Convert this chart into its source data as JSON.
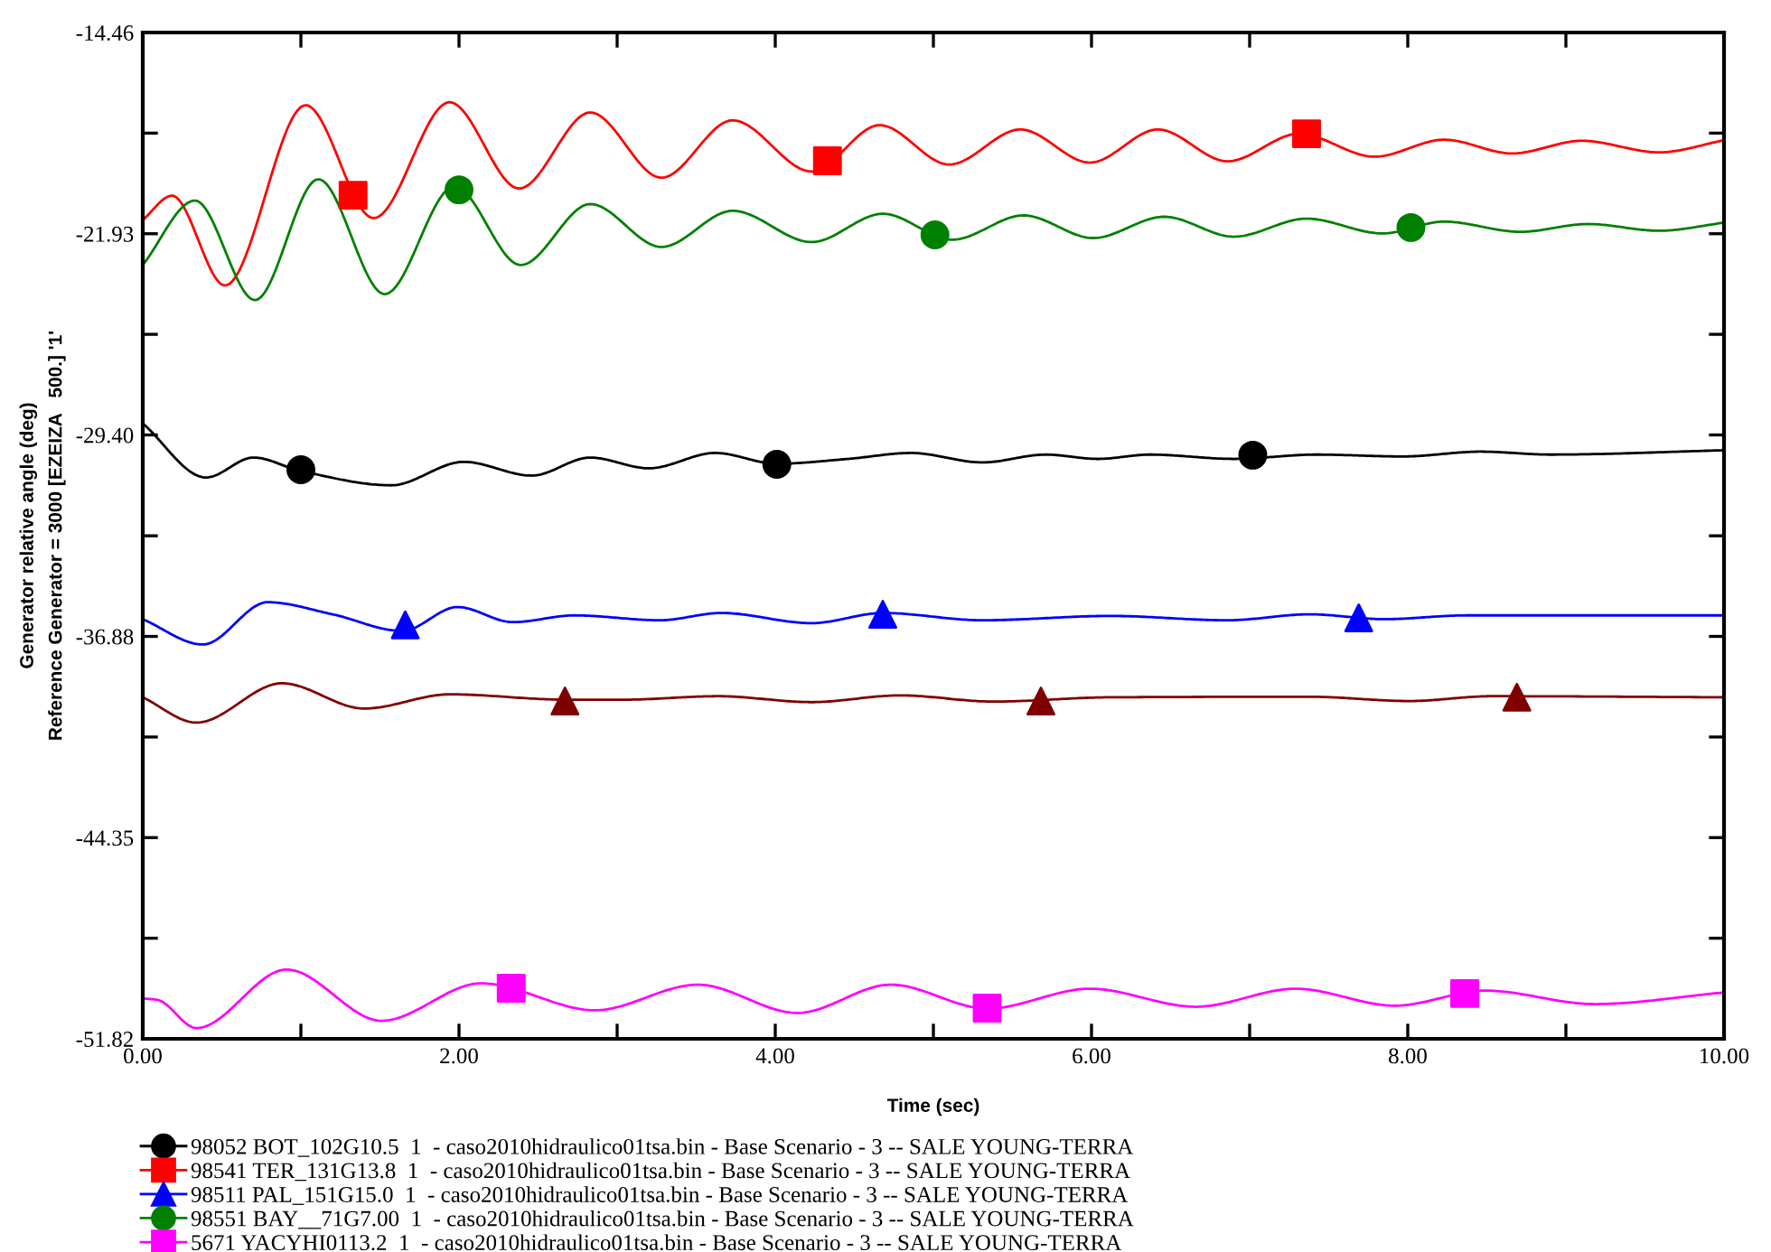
{
  "chart_data": {
    "type": "line",
    "xlabel": "Time (sec)",
    "ylabel": "Generator relative angle (deg)\nReference Generator = 3000 [EZEIZA   500.] '1'",
    "xlim": [
      0,
      10
    ],
    "xticks": [
      {
        "value": 0,
        "label": "0.00"
      },
      {
        "value": 1,
        "label": null
      },
      {
        "value": 2,
        "label": "2.00"
      },
      {
        "value": 3,
        "label": null
      },
      {
        "value": 4,
        "label": "4.00"
      },
      {
        "value": 5,
        "label": null
      },
      {
        "value": 6,
        "label": "6.00"
      },
      {
        "value": 7,
        "label": null
      },
      {
        "value": 8,
        "label": "8.00"
      },
      {
        "value": 9,
        "label": null
      },
      {
        "value": 10,
        "label": "10.00"
      }
    ],
    "ylim": [
      -51.82,
      -14.46
    ],
    "yticks": [
      {
        "value": -51.82,
        "label": "-51.82"
      },
      {
        "value": -48.085,
        "label": null
      },
      {
        "value": -44.35,
        "label": "-44.35"
      },
      {
        "value": -40.615,
        "label": null
      },
      {
        "value": -36.88,
        "label": "-36.88"
      },
      {
        "value": -33.145,
        "label": null
      },
      {
        "value": -29.4,
        "label": "-29.40"
      },
      {
        "value": -25.665,
        "label": null
      },
      {
        "value": -21.93,
        "label": "-21.93"
      },
      {
        "value": -18.195,
        "label": null
      },
      {
        "value": -14.46,
        "label": "-14.46"
      }
    ],
    "grid": false,
    "legend": "bottom",
    "line_style": "solid",
    "series": [
      {
        "name": "98052 BOT_102G10.5  1  - caso2010hidraulico01tsa.bin - Base Scenario - 3 -- SALE YOUNG-TERRA",
        "color": "#000000",
        "x": [
          0,
          0.4,
          0.7,
          1.0,
          1.57,
          2.03,
          2.46,
          2.83,
          3.2,
          3.62,
          4.01,
          4.46,
          4.86,
          5.31,
          5.71,
          6.04,
          6.37,
          6.9,
          7.42,
          7.97,
          8.46,
          8.9,
          10
        ],
        "values": [
          -28.97,
          -30.98,
          -30.24,
          -30.74,
          -31.27,
          -30.4,
          -30.91,
          -30.24,
          -30.64,
          -30.07,
          -30.47,
          -30.29,
          -30.07,
          -30.42,
          -30.13,
          -30.29,
          -30.13,
          -30.29,
          -30.13,
          -30.2,
          -30.02,
          -30.13,
          -29.97
        ]
      },
      {
        "name": "98541 TER_131G13.8  1  - caso2010hidraulico01tsa.bin - Base Scenario - 3 -- SALE YOUNG-TERRA",
        "color": "#ff0000",
        "x": [
          0,
          0.185,
          0.52,
          1.03,
          1.46,
          1.94,
          2.38,
          2.83,
          3.28,
          3.73,
          4.23,
          4.66,
          5.1,
          5.55,
          5.99,
          6.42,
          6.86,
          7.31,
          7.79,
          8.23,
          8.66,
          9.1,
          9.59,
          10
        ],
        "values": [
          -21.42,
          -20.52,
          -23.85,
          -17.16,
          -21.35,
          -17.05,
          -20.25,
          -17.43,
          -19.85,
          -17.72,
          -19.62,
          -17.9,
          -19.36,
          -18.06,
          -19.29,
          -18.06,
          -19.24,
          -18.22,
          -19.07,
          -18.44,
          -18.95,
          -18.48,
          -18.91,
          -18.46
        ]
      },
      {
        "name": "98511 PAL_151G15.0  1  - caso2010hidraulico01tsa.bin - Base Scenario - 3 -- SALE YOUNG-TERRA",
        "color": "#0000ff",
        "x": [
          0,
          0.38,
          0.79,
          1.2,
          1.64,
          1.99,
          2.34,
          2.73,
          3.27,
          3.66,
          4.23,
          4.68,
          5.31,
          6.12,
          6.86,
          7.38,
          7.85,
          8.37,
          10
        ],
        "values": [
          -36.24,
          -37.18,
          -35.61,
          -36.06,
          -36.68,
          -35.79,
          -36.35,
          -36.1,
          -36.28,
          -36.01,
          -36.39,
          -36.01,
          -36.28,
          -36.12,
          -36.28,
          -36.06,
          -36.24,
          -36.1,
          -36.1
        ]
      },
      {
        "name": "98551 BAY__71G7.00  1  - caso2010hidraulico01tsa.bin - Base Scenario - 3 -- SALE YOUNG-TERRA",
        "color": "#008000",
        "x": [
          0,
          0.33,
          0.71,
          1.11,
          1.53,
          1.97,
          2.39,
          2.83,
          3.28,
          3.73,
          4.23,
          4.68,
          5.12,
          5.57,
          6.01,
          6.46,
          6.9,
          7.36,
          7.84,
          8.23,
          8.71,
          9.14,
          9.59,
          10
        ],
        "values": [
          -23.09,
          -20.7,
          -24.39,
          -19.91,
          -24.17,
          -20.18,
          -23.09,
          -20.83,
          -22.42,
          -21.08,
          -22.24,
          -21.19,
          -22.15,
          -21.25,
          -22.09,
          -21.3,
          -22.04,
          -21.37,
          -21.92,
          -21.48,
          -21.86,
          -21.57,
          -21.82,
          -21.52
        ]
      },
      {
        "name": "5671 YACYHI0113.2  1  - caso2010hidraulico01tsa.bin - Base Scenario - 3 -- SALE YOUNG-TERRA",
        "color": "#ff00ff",
        "x": [
          0,
          0.09,
          0.34,
          0.91,
          1.51,
          2.14,
          2.86,
          3.51,
          4.14,
          4.73,
          5.34,
          5.99,
          6.66,
          7.29,
          7.92,
          8.49,
          9.18,
          10
        ],
        "values": [
          -50.32,
          -50.37,
          -51.42,
          -49.25,
          -51.15,
          -49.76,
          -50.76,
          -49.81,
          -50.86,
          -49.81,
          -50.7,
          -49.96,
          -50.63,
          -49.96,
          -50.59,
          -50.03,
          -50.53,
          -50.1
        ]
      },
      {
        "color": "#800000",
        "x": [
          0,
          0.34,
          0.88,
          1.4,
          1.94,
          2.68,
          3.04,
          3.64,
          4.23,
          4.79,
          5.38,
          6.12,
          7.38,
          8.01,
          8.53,
          10
        ],
        "values": [
          -39.14,
          -40.08,
          -38.62,
          -39.56,
          -39.03,
          -39.23,
          -39.23,
          -39.1,
          -39.32,
          -39.07,
          -39.3,
          -39.14,
          -39.12,
          -39.28,
          -39.1,
          -39.14
        ]
      },
      {
        "type": "scatter",
        "color": "#000000",
        "marker": "circle",
        "x": [
          1.0,
          4.01,
          7.02
        ],
        "values": [
          -30.69,
          -30.49,
          -30.15
        ]
      },
      {
        "type": "scatter",
        "color": "#ff0000",
        "marker": "square",
        "x": [
          1.33,
          4.33,
          7.36
        ],
        "values": [
          -20.5,
          -19.22,
          -18.22
        ]
      },
      {
        "type": "scatter",
        "color": "#0000ff",
        "marker": "triangle",
        "x": [
          1.66,
          4.68,
          7.69
        ],
        "values": [
          -36.45,
          -36.06,
          -36.19
        ]
      },
      {
        "type": "scatter",
        "color": "#008000",
        "marker": "circle",
        "x": [
          2.0,
          5.01,
          8.02
        ],
        "values": [
          -20.3,
          -21.97,
          -21.7
        ]
      },
      {
        "type": "scatter",
        "color": "#ff00ff",
        "marker": "square",
        "x": [
          2.33,
          5.34,
          8.36
        ],
        "values": [
          -49.94,
          -50.68,
          -50.14
        ]
      },
      {
        "type": "scatter",
        "color": "#800000",
        "marker": "triangle",
        "x": [
          2.67,
          5.68,
          8.69
        ],
        "values": [
          -39.28,
          -39.28,
          -39.14
        ]
      }
    ]
  }
}
